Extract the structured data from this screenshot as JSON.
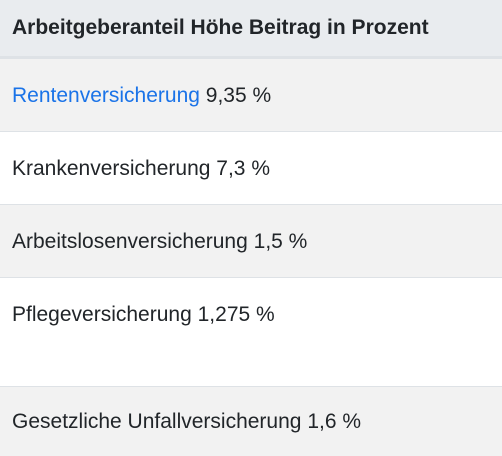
{
  "table": {
    "header": "Arbeitgeberanteil Höhe Beitrag in Prozent",
    "rows": [
      {
        "label": "Rentenversicherung",
        "value": "9,35 %",
        "is_link": true
      },
      {
        "label": "Krankenversicherung",
        "value": "7,3 %"
      },
      {
        "label": "Arbeitslosenversicherung",
        "value": "1,5 %"
      },
      {
        "label": "Pflegeversicherung",
        "value": "1,275 %"
      },
      {
        "label": "Gesetzliche Unfallversicherung",
        "value": "1,6 %"
      }
    ]
  },
  "colors": {
    "header_bg": "#e9ecef",
    "striped_row_bg": "#f2f2f2",
    "link": "#1a73e8",
    "text": "#212529"
  }
}
